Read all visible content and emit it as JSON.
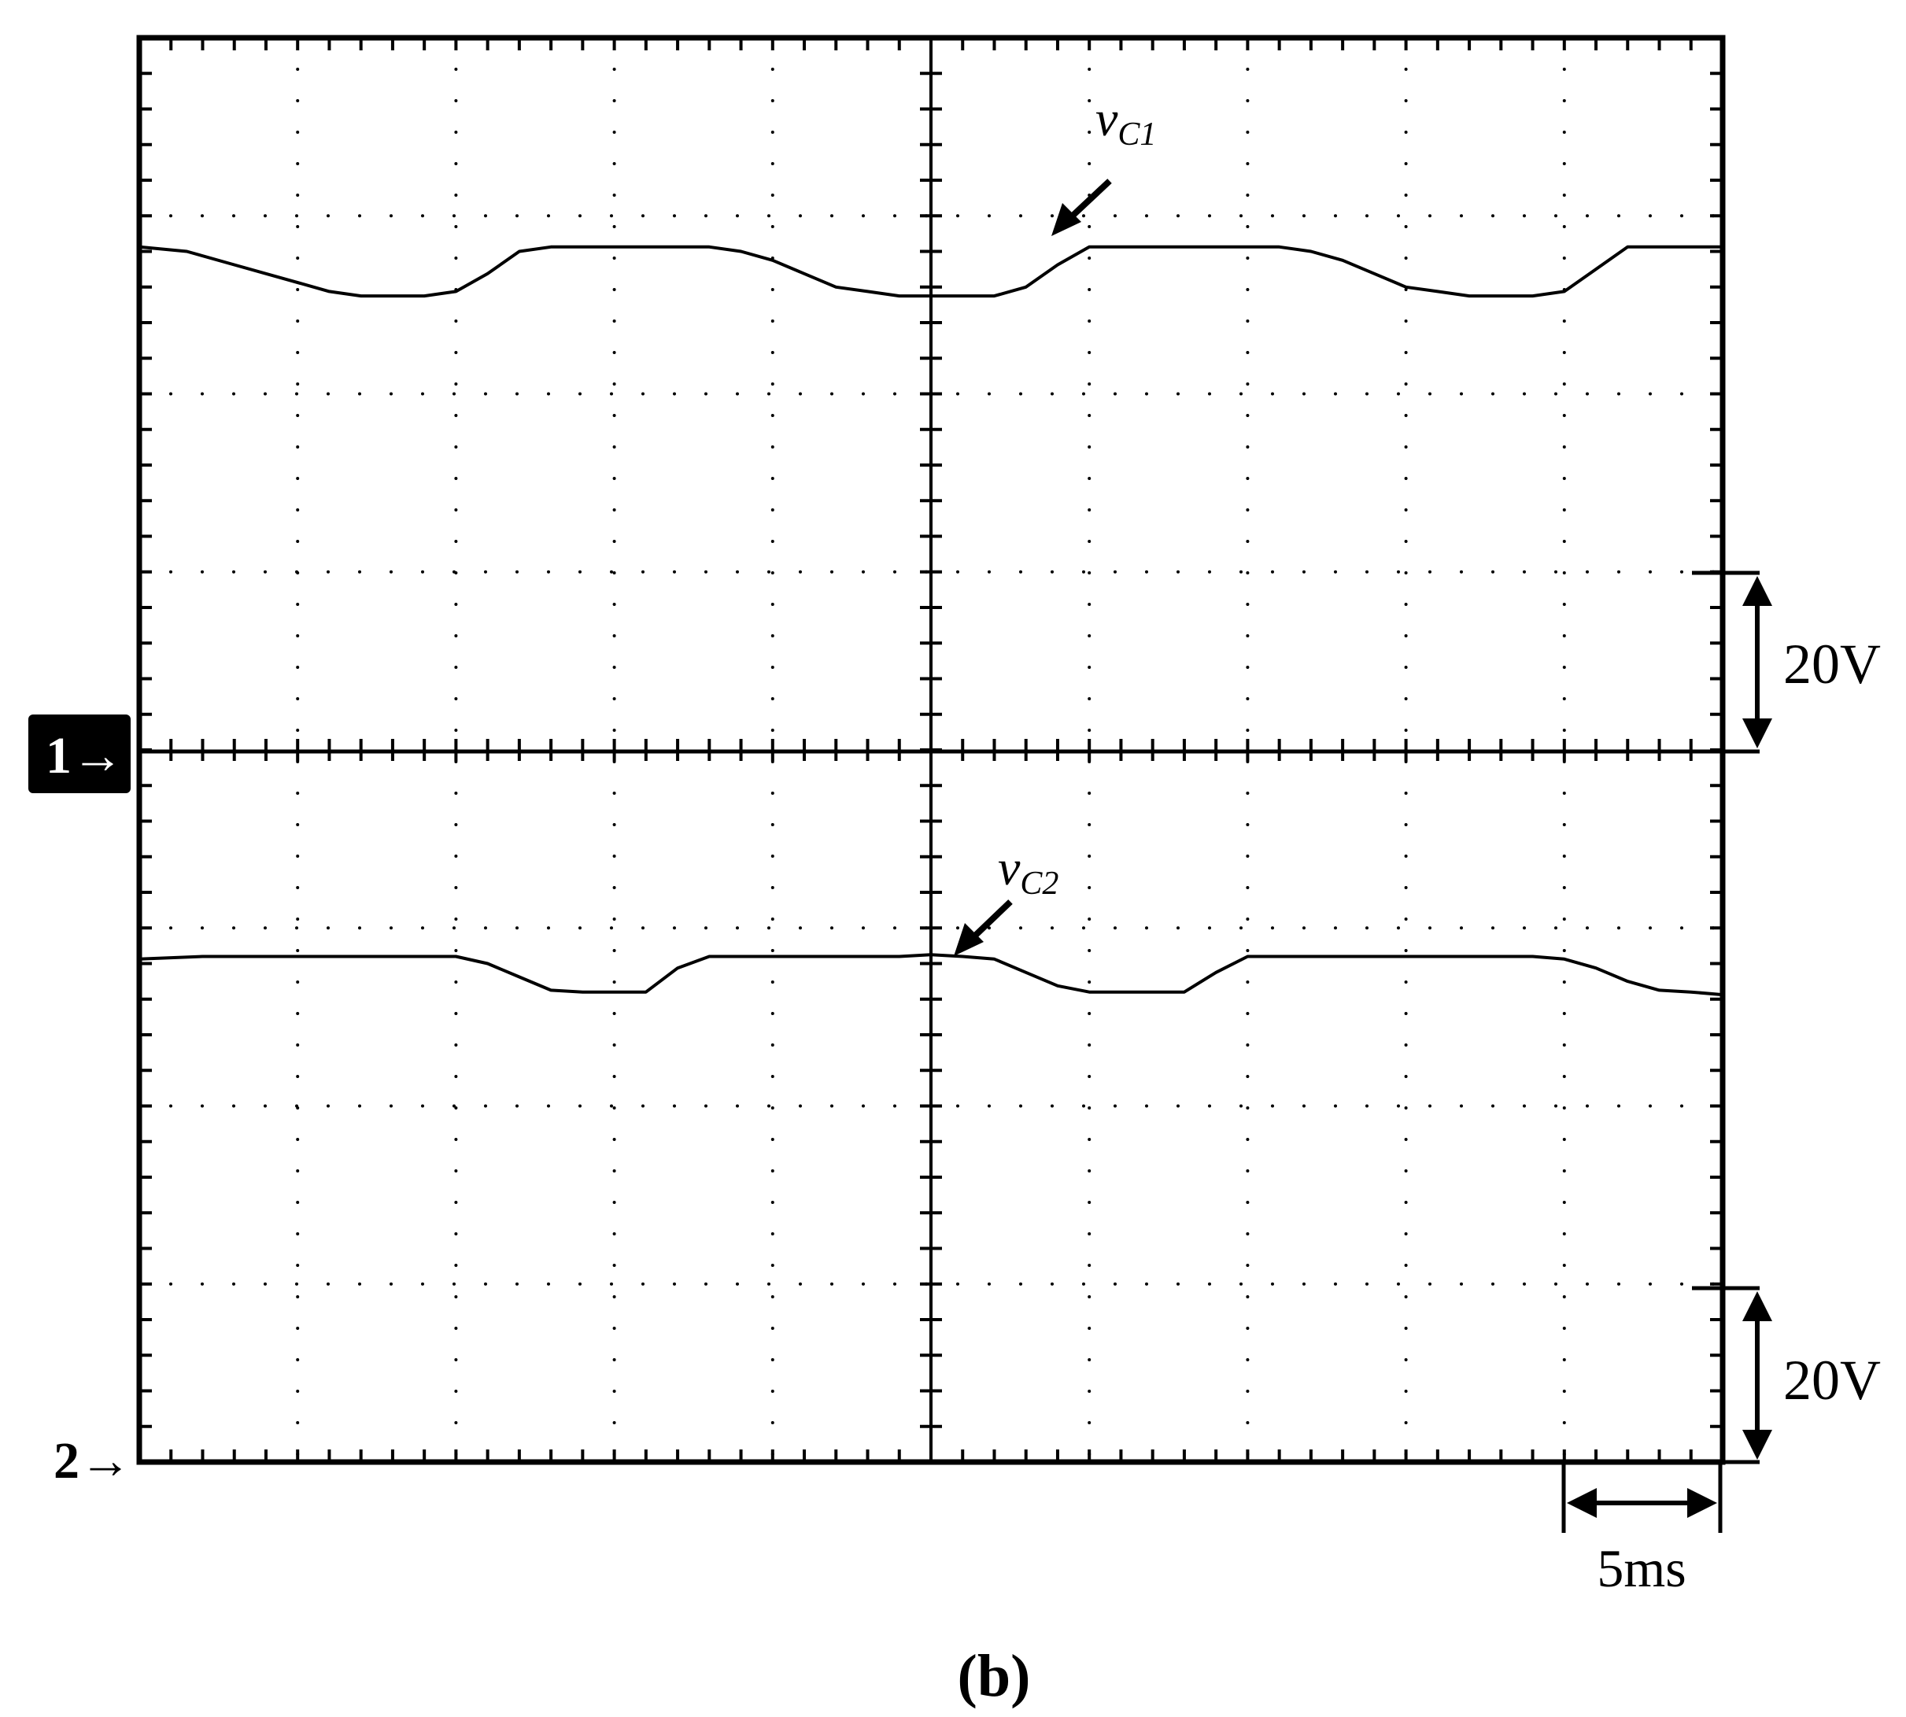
{
  "chart_data": {
    "type": "line",
    "caption": "(b)",
    "x_unit": "ms",
    "x_range": [
      0,
      50
    ],
    "x_divisions": 10,
    "y_divisions": 8,
    "scale": {
      "volts_per_div_label": "20V",
      "volts_per_div": 20,
      "time_per_div_label": "5ms",
      "time_per_div": 5
    },
    "channel_markers": [
      {
        "label": "1",
        "arrow": "→",
        "style": "inverted-box"
      },
      {
        "label": "2",
        "arrow": "→",
        "style": "plain"
      }
    ],
    "series": [
      {
        "name": "vC1",
        "label_main": "v",
        "label_sub": "C1",
        "reference_channel": 1,
        "y_unit": "V",
        "x": [
          0,
          1.5,
          3,
          4.5,
          6,
          7,
          8,
          9,
          10,
          11,
          12,
          13,
          14,
          15,
          16,
          17,
          18,
          19,
          20,
          21,
          22,
          23,
          24,
          25,
          26,
          27,
          28,
          29,
          30,
          31,
          32,
          33,
          34,
          35,
          36,
          37,
          38,
          39,
          40,
          41,
          42,
          43,
          44,
          45,
          46,
          47,
          48,
          49,
          50
        ],
        "y": [
          56.5,
          56.0,
          54.5,
          53.0,
          51.5,
          51.0,
          51.0,
          51.0,
          51.5,
          53.5,
          56.0,
          56.5,
          56.5,
          56.5,
          56.5,
          56.5,
          56.5,
          56.0,
          55.0,
          53.5,
          52.0,
          51.5,
          51.0,
          51.0,
          51.0,
          51.0,
          52.0,
          54.5,
          56.5,
          56.5,
          56.5,
          56.5,
          56.5,
          56.5,
          56.5,
          56.0,
          55.0,
          53.5,
          52.0,
          51.5,
          51.0,
          51.0,
          51.0,
          51.5,
          54.0,
          56.5,
          56.5,
          56.5,
          56.5
        ]
      },
      {
        "name": "vC2",
        "label_main": "v",
        "label_sub": "C2",
        "reference_channel": 2,
        "y_unit": "V",
        "x": [
          0,
          2,
          4,
          6,
          8,
          10,
          11,
          12,
          13,
          14,
          15,
          16,
          17,
          18,
          19,
          20,
          21,
          22,
          23,
          24,
          25,
          26,
          27,
          28,
          29,
          30,
          31,
          32,
          33,
          34,
          35,
          36,
          37,
          38,
          39,
          40,
          41,
          42,
          43,
          44,
          45,
          46,
          47,
          48,
          49,
          50
        ],
        "y": [
          56.5,
          56.8,
          56.8,
          56.8,
          56.8,
          56.8,
          56.0,
          54.5,
          53.0,
          52.8,
          52.8,
          52.8,
          55.5,
          56.8,
          56.8,
          56.8,
          56.8,
          56.8,
          56.8,
          56.8,
          57.0,
          56.8,
          56.5,
          55.0,
          53.5,
          52.8,
          52.8,
          52.8,
          52.8,
          55.0,
          56.8,
          56.8,
          56.8,
          56.8,
          56.8,
          56.8,
          56.8,
          56.8,
          56.8,
          56.8,
          56.5,
          55.5,
          54.0,
          53.0,
          52.8,
          52.5
        ]
      }
    ]
  }
}
